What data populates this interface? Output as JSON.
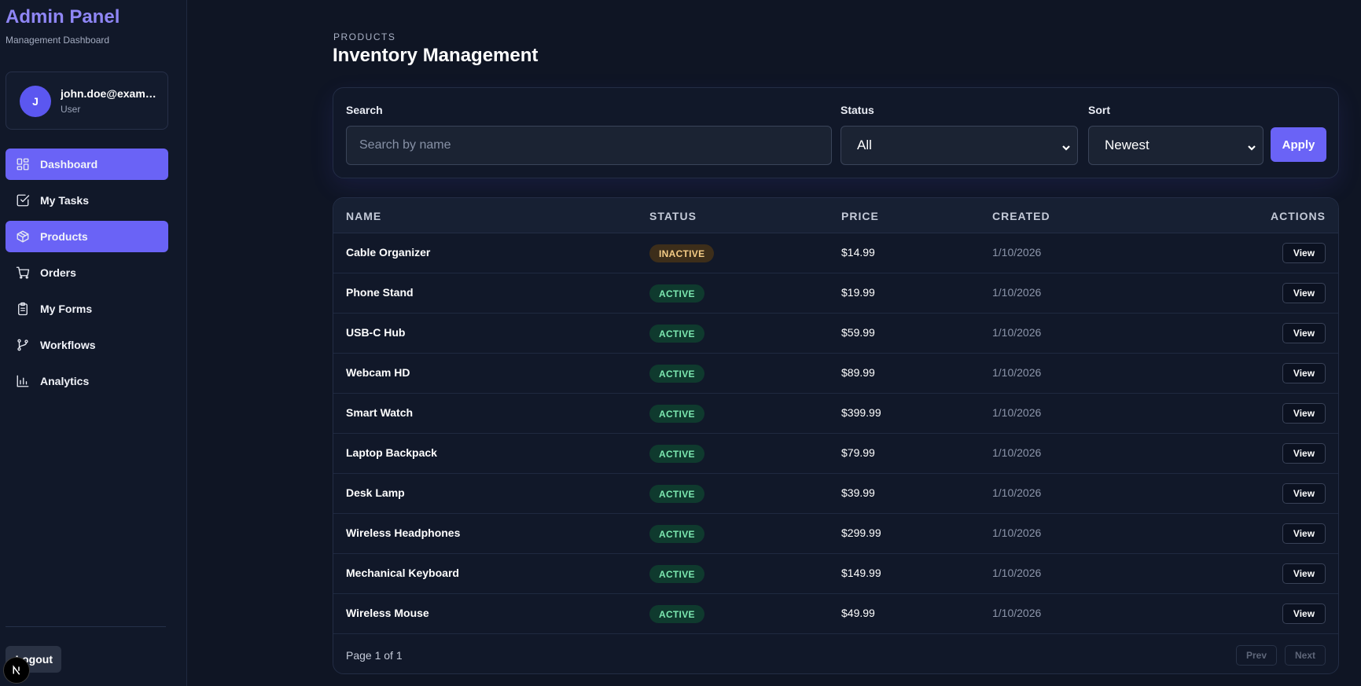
{
  "brand": {
    "title": "Admin Panel",
    "subtitle": "Management Dashboard"
  },
  "user": {
    "initial": "J",
    "email": "john.doe@example.com",
    "role": "User"
  },
  "nav": [
    {
      "label": "Dashboard",
      "icon": "layout-grid-icon",
      "active": true
    },
    {
      "label": "My Tasks",
      "icon": "checkbox-icon",
      "active": false
    },
    {
      "label": "Products",
      "icon": "package-icon",
      "active": true
    },
    {
      "label": "Orders",
      "icon": "cart-icon",
      "active": false
    },
    {
      "label": "My Forms",
      "icon": "clipboard-icon",
      "active": false
    },
    {
      "label": "Workflows",
      "icon": "git-branch-icon",
      "active": false
    },
    {
      "label": "Analytics",
      "icon": "bar-chart-icon",
      "active": false
    }
  ],
  "logout_label": "Logout",
  "page": {
    "eyebrow": "PRODUCTS",
    "title": "Inventory Management"
  },
  "filters": {
    "search_label": "Search",
    "search_placeholder": "Search by name",
    "search_value": "",
    "status_label": "Status",
    "status_value": "All",
    "sort_label": "Sort",
    "sort_value": "Newest",
    "apply_label": "Apply"
  },
  "table": {
    "headers": {
      "name": "NAME",
      "status": "STATUS",
      "price": "PRICE",
      "created": "CREATED",
      "actions": "ACTIONS"
    },
    "rows": [
      {
        "name": "Cable Organizer",
        "status": "INACTIVE",
        "price": "$14.99",
        "created": "1/10/2026",
        "action": "View"
      },
      {
        "name": "Phone Stand",
        "status": "ACTIVE",
        "price": "$19.99",
        "created": "1/10/2026",
        "action": "View"
      },
      {
        "name": "USB-C Hub",
        "status": "ACTIVE",
        "price": "$59.99",
        "created": "1/10/2026",
        "action": "View"
      },
      {
        "name": "Webcam HD",
        "status": "ACTIVE",
        "price": "$89.99",
        "created": "1/10/2026",
        "action": "View"
      },
      {
        "name": "Smart Watch",
        "status": "ACTIVE",
        "price": "$399.99",
        "created": "1/10/2026",
        "action": "View"
      },
      {
        "name": "Laptop Backpack",
        "status": "ACTIVE",
        "price": "$79.99",
        "created": "1/10/2026",
        "action": "View"
      },
      {
        "name": "Desk Lamp",
        "status": "ACTIVE",
        "price": "$39.99",
        "created": "1/10/2026",
        "action": "View"
      },
      {
        "name": "Wireless Headphones",
        "status": "ACTIVE",
        "price": "$299.99",
        "created": "1/10/2026",
        "action": "View"
      },
      {
        "name": "Mechanical Keyboard",
        "status": "ACTIVE",
        "price": "$149.99",
        "created": "1/10/2026",
        "action": "View"
      },
      {
        "name": "Wireless Mouse",
        "status": "ACTIVE",
        "price": "$49.99",
        "created": "1/10/2026",
        "action": "View"
      }
    ]
  },
  "pagination": {
    "info": "Page 1 of 1",
    "prev_label": "Prev",
    "next_label": "Next"
  },
  "colors": {
    "accent": "#6a63f6",
    "brand": "#8f86f5",
    "active_badge": "#7ce8b0",
    "inactive_badge": "#f4cc86"
  }
}
